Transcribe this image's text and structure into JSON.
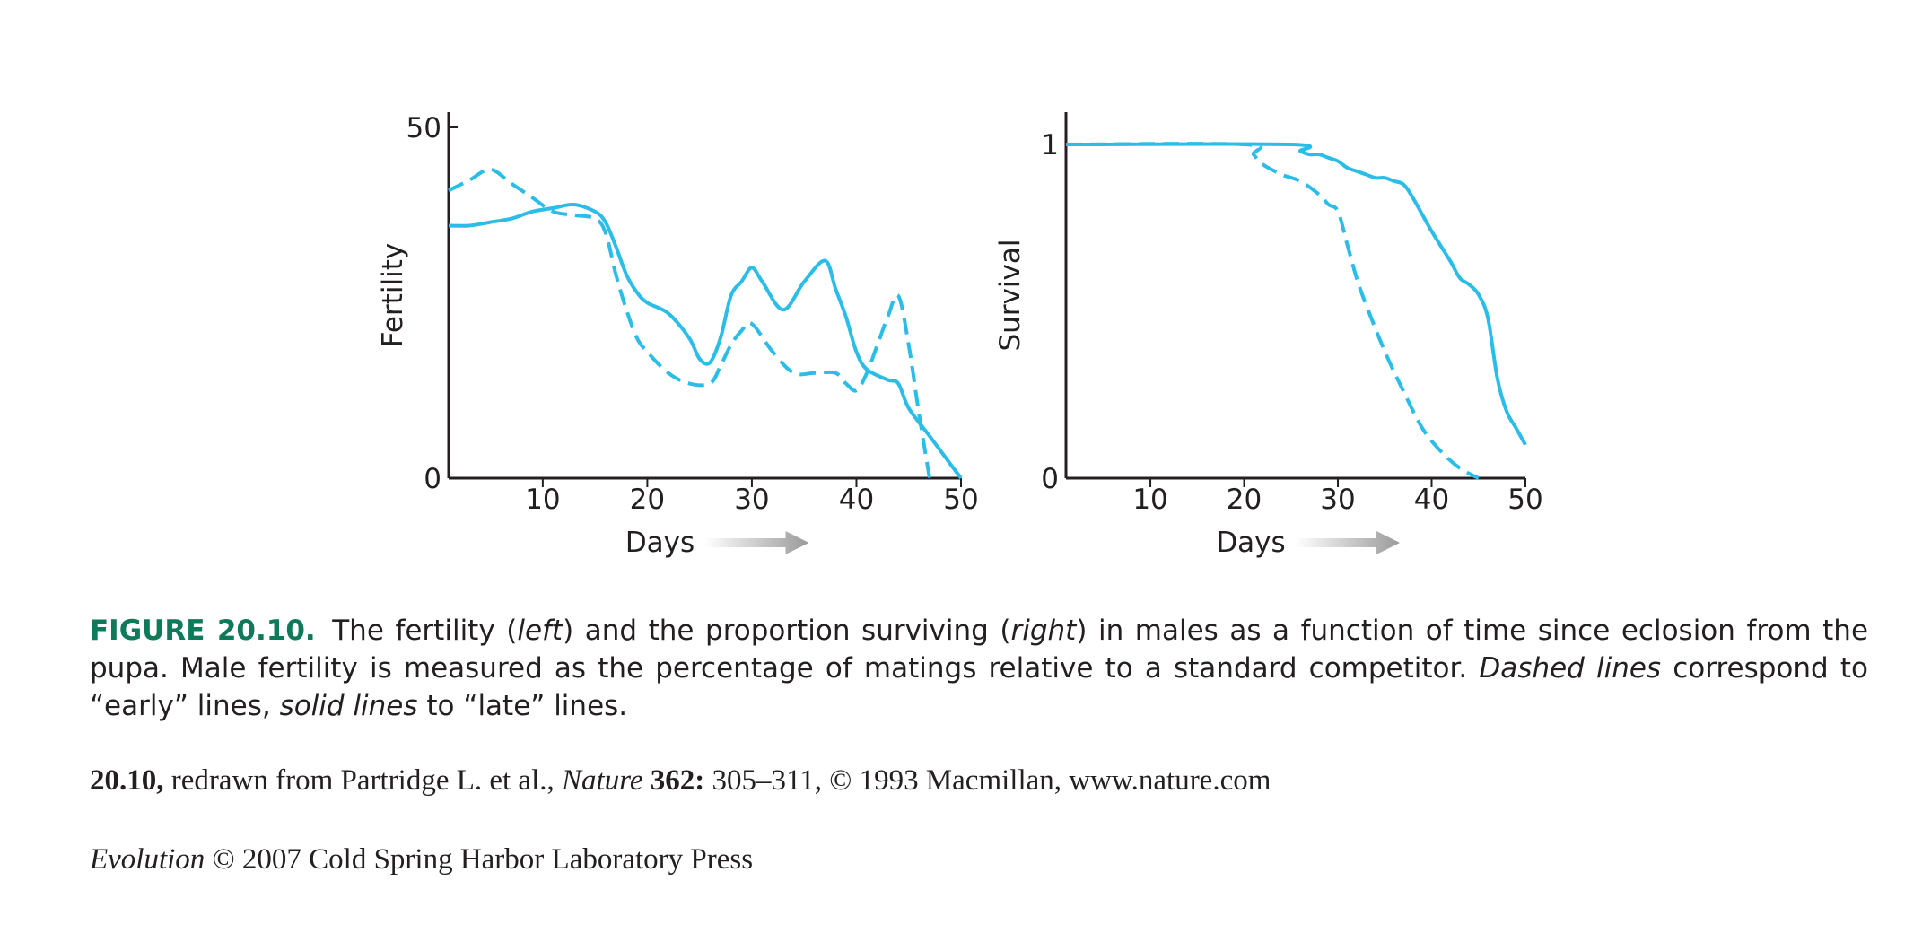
{
  "colors": {
    "line": "#2bbde8",
    "axis": "#231f20",
    "arrow": "#9a9a9a",
    "figure_label": "#0f7a5a"
  },
  "chart_data": [
    {
      "type": "line",
      "ylabel": "Fertility",
      "xlabel": "Days",
      "xlim": [
        1,
        50
      ],
      "ylim": [
        0,
        50
      ],
      "xticks": [
        10,
        20,
        30,
        40,
        50
      ],
      "yticks": [
        0,
        50
      ],
      "series": [
        {
          "style": "dashed",
          "x": [
            1,
            3,
            5,
            7,
            9,
            11,
            13,
            15,
            16,
            17,
            18,
            19,
            20,
            22,
            24,
            26,
            27,
            28,
            29,
            30,
            32,
            34,
            36,
            38,
            39,
            40,
            41,
            42,
            43,
            44,
            45,
            46,
            47
          ],
          "y": [
            41,
            42.5,
            44,
            42,
            40,
            38,
            37.5,
            37,
            35,
            29,
            24,
            20,
            18,
            15,
            13.5,
            13.5,
            16,
            19,
            21,
            22,
            18,
            15,
            15,
            15,
            13.5,
            12.5,
            15,
            19,
            23,
            26,
            19,
            9,
            0
          ]
        },
        {
          "style": "solid",
          "x": [
            1,
            3,
            5,
            7,
            9,
            11,
            13,
            15,
            16,
            17,
            18,
            19,
            20,
            22,
            24,
            25,
            26,
            27,
            28,
            29,
            30,
            31,
            33,
            35,
            37,
            38,
            39,
            40,
            41,
            43,
            44,
            45,
            47,
            49,
            50
          ],
          "y": [
            36,
            36,
            36.5,
            37,
            38,
            38.5,
            39,
            38,
            36.5,
            33,
            29,
            26.5,
            25,
            23.5,
            20,
            17,
            16.5,
            20,
            26,
            28,
            30,
            28,
            24,
            28,
            31,
            27,
            23,
            18,
            15.5,
            14,
            13.5,
            10,
            6,
            2,
            0
          ]
        }
      ]
    },
    {
      "type": "line",
      "ylabel": "Survival",
      "xlabel": "Days",
      "xlim": [
        1,
        50
      ],
      "ylim": [
        0,
        1
      ],
      "xticks": [
        10,
        20,
        30,
        40,
        50
      ],
      "yticks": [
        0,
        1
      ],
      "series": [
        {
          "style": "dashed",
          "x": [
            1,
            20,
            21,
            22,
            24,
            26,
            28,
            29,
            30,
            31,
            32,
            33,
            35,
            37,
            39,
            41,
            43,
            45
          ],
          "y": [
            1,
            1,
            0.97,
            0.94,
            0.91,
            0.89,
            0.85,
            0.82,
            0.8,
            0.7,
            0.6,
            0.52,
            0.38,
            0.26,
            0.15,
            0.08,
            0.03,
            0
          ]
        },
        {
          "style": "solid",
          "x": [
            1,
            25,
            26,
            27,
            28,
            29,
            30,
            31,
            32,
            33,
            34,
            35,
            36,
            37,
            38,
            40,
            42,
            43,
            44,
            45,
            46,
            47,
            48,
            49,
            50
          ],
          "y": [
            1,
            1,
            0.98,
            0.97,
            0.97,
            0.96,
            0.95,
            0.93,
            0.92,
            0.91,
            0.9,
            0.9,
            0.89,
            0.88,
            0.84,
            0.74,
            0.65,
            0.6,
            0.58,
            0.55,
            0.48,
            0.3,
            0.2,
            0.15,
            0.1
          ]
        }
      ]
    }
  ],
  "caption": {
    "label": "FIGURE 20.10.",
    "part1": "The fertility (",
    "left_word": "left",
    "part2": ") and the proportion surviving (",
    "right_word": "right",
    "part3": ") in males as a function of time since eclosion from the pupa. Male fertility is measured as the percentage of matings relative to a standard competitor.",
    "dashed_words": "Dashed lines",
    "part4": "correspond to “early” lines,",
    "solid_words": "solid lines",
    "part5": "to “late” lines."
  },
  "credit": {
    "fig_ref": "20.10,",
    "text1": "redrawn from Partridge L. et al.,",
    "journal": "Nature",
    "volume": "362:",
    "text2": "305–311, © 1993 Macmillan, www.nature.com"
  },
  "copyright": {
    "book": "Evolution",
    "text": "© 2007 Cold Spring Harbor Laboratory Press"
  }
}
